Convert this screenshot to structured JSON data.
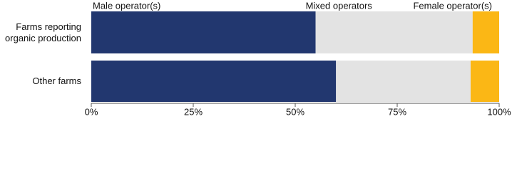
{
  "chart_data": {
    "type": "stacked-barh",
    "categories": [
      "Farms reporting organic production",
      "Other farms"
    ],
    "series": [
      {
        "name": "Male operator(s)",
        "color": "#22376f",
        "values": [
          55,
          60
        ]
      },
      {
        "name": "Mixed operators",
        "color": "#e3e3e3",
        "values": [
          38.5,
          33
        ]
      },
      {
        "name": "Female operator(s)",
        "color": "#fbb715",
        "values": [
          6.5,
          7
        ]
      }
    ],
    "xlim": [
      0,
      100
    ],
    "xticks": [
      {
        "value": 0,
        "label": "0%"
      },
      {
        "value": 25,
        "label": "25%"
      },
      {
        "value": 50,
        "label": "50%"
      },
      {
        "value": 75,
        "label": "75%"
      },
      {
        "value": 100,
        "label": "100%"
      }
    ]
  }
}
